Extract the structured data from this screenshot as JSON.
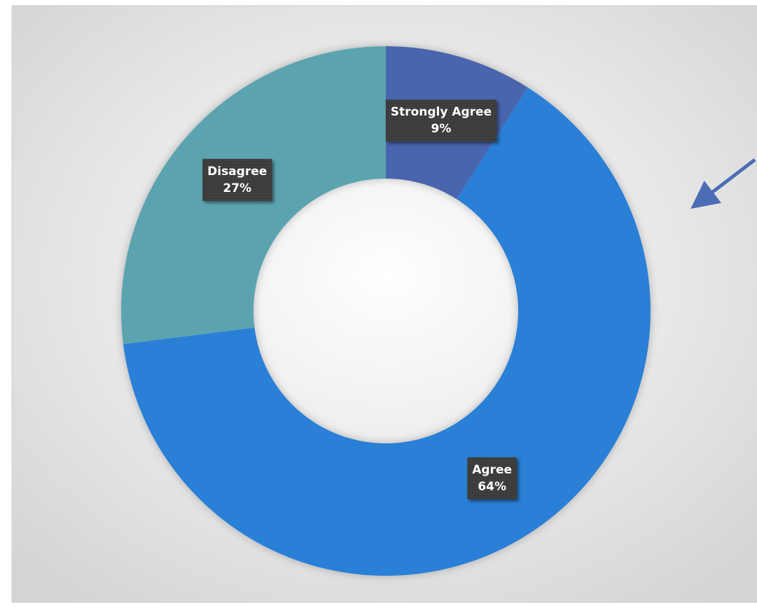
{
  "chart_data": {
    "type": "donut",
    "categories": [
      "Strongly Agree",
      "Agree",
      "Disagree"
    ],
    "values": [
      9,
      64,
      27
    ],
    "value_labels": [
      "9%",
      "64%",
      "27%"
    ],
    "colors": [
      "#4a65ad",
      "#2b7fd6",
      "#5ba3b0"
    ]
  }
}
